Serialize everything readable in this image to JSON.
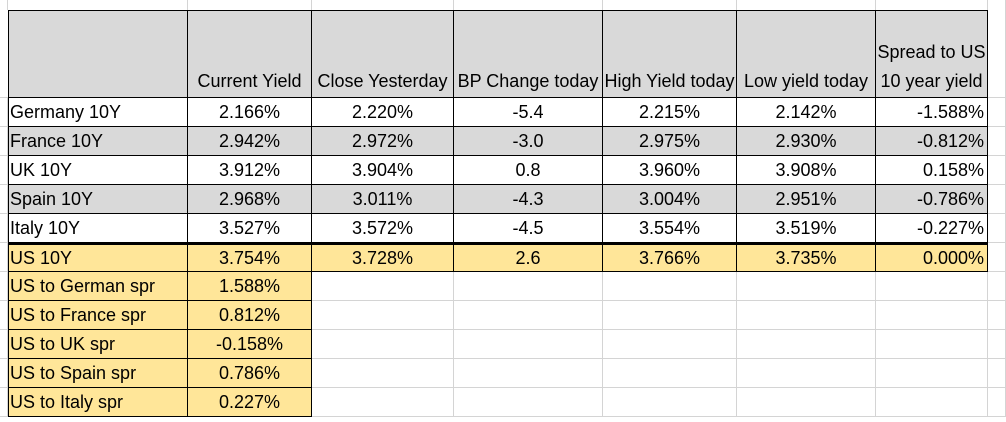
{
  "headers": {
    "current_yield": "Current Yield",
    "close_yesterday": "Close Yesterday",
    "bp_change": "BP Change today",
    "high_yield": "High Yield today",
    "low_yield": "Low yield today",
    "spread": "Spread to US 10 year yield"
  },
  "rows": [
    {
      "name": "Germany 10Y",
      "current": "2.166%",
      "close": "2.220%",
      "bp": "-5.4",
      "high": "2.215%",
      "low": "2.142%",
      "spread": "-1.588%"
    },
    {
      "name": "France 10Y",
      "current": "2.942%",
      "close": "2.972%",
      "bp": "-3.0",
      "high": "2.975%",
      "low": "2.930%",
      "spread": "-0.812%"
    },
    {
      "name": "UK 10Y",
      "current": "3.912%",
      "close": "3.904%",
      "bp": "0.8",
      "high": "3.960%",
      "low": "3.908%",
      "spread": "0.158%"
    },
    {
      "name": "Spain 10Y",
      "current": "2.968%",
      "close": "3.011%",
      "bp": "-4.3",
      "high": "3.004%",
      "low": "2.951%",
      "spread": "-0.786%"
    },
    {
      "name": "Italy 10Y",
      "current": "3.527%",
      "close": "3.572%",
      "bp": "-4.5",
      "high": "3.554%",
      "low": "3.519%",
      "spread": "-0.227%"
    }
  ],
  "us": {
    "name": "US 10Y",
    "current": "3.754%",
    "close": "3.728%",
    "bp": "2.6",
    "high": "3.766%",
    "low": "3.735%",
    "spread": "0.000%"
  },
  "spreads": [
    {
      "label": "US to German spr",
      "value": "1.588%"
    },
    {
      "label": "US to France spr",
      "value": "0.812%"
    },
    {
      "label": "US to UK spr",
      "value": "-0.158%"
    },
    {
      "label": "US to Spain spr",
      "value": "0.786%"
    },
    {
      "label": "US to Italy spr",
      "value": "0.227%"
    }
  ],
  "colors": {
    "header_fill": "#d9d9d9",
    "shaded_row_fill": "#d9d9d9",
    "us_fill": "#ffe699",
    "gridline": "#d4d4d4"
  }
}
